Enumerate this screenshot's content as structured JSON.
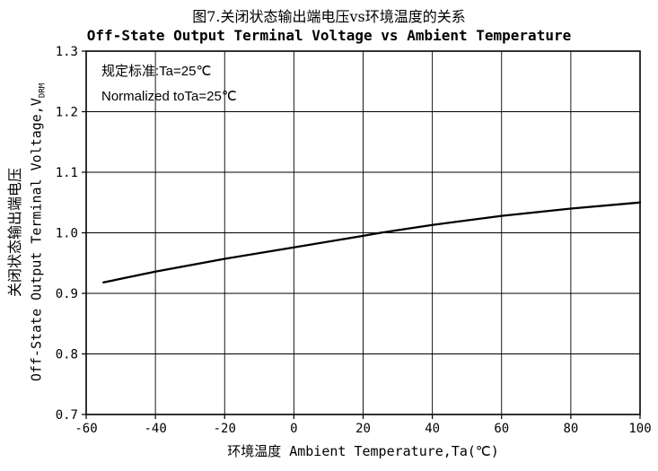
{
  "figure": {
    "title_cn": "图7.关闭状态输出端电压vs环境温度的关系",
    "title_en": "Off-State Output Terminal Voltage vs Ambient Temperature"
  },
  "annotation": {
    "line1": "规定标准:Ta=25℃",
    "line2": "Normalized toTa=25℃"
  },
  "axes": {
    "x_title": "环境温度 Ambient Temperature,Ta(℃)",
    "y_title_cn": "关闭状态输出端电压",
    "y_title_en": "Off-State Output Terminal Voltage,V",
    "y_title_sub": "DRM"
  },
  "chart_data": {
    "type": "line",
    "title": "Off-State Output Terminal Voltage vs Ambient Temperature",
    "xlabel": "环境温度 Ambient Temperature,Ta(℃)",
    "ylabel": "关闭状态输出端电压 Off-State Output Terminal Voltage,VDRM",
    "xlim": [
      -60,
      100
    ],
    "ylim": [
      0.7,
      1.3
    ],
    "x_ticks": [
      -60,
      -40,
      -20,
      0,
      20,
      40,
      60,
      80,
      100
    ],
    "y_ticks": [
      0.7,
      0.8,
      0.9,
      1.0,
      1.1,
      1.2,
      1.3
    ],
    "grid": true,
    "legend": false,
    "line_color": "#000000",
    "x": [
      -55,
      -40,
      -20,
      0,
      20,
      25,
      40,
      60,
      80,
      100
    ],
    "y": [
      0.918,
      0.936,
      0.957,
      0.976,
      0.995,
      1.0,
      1.013,
      1.028,
      1.04,
      1.05
    ]
  }
}
